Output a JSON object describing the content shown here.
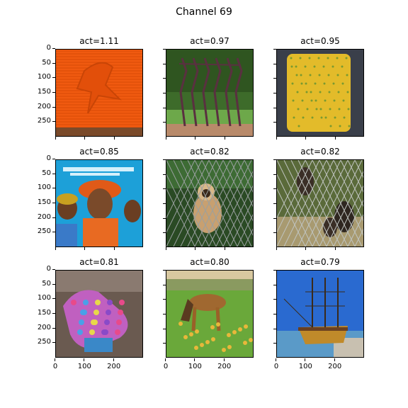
{
  "figure": {
    "title": "Channel 69"
  },
  "panels": [
    {
      "title": "act=1.11",
      "image": "orange knitted dishcloth with bird pattern"
    },
    {
      "title": "act=0.97",
      "image": "metal sculpture frames in garden"
    },
    {
      "title": "act=0.95",
      "image": "yellow knitted dishcloth"
    },
    {
      "title": "act=0.85",
      "image": "poster of women with headscarves"
    },
    {
      "title": "act=0.82",
      "image": "gibbon behind chain-link fence"
    },
    {
      "title": "act=0.82",
      "image": "animals behind chain-link fence"
    },
    {
      "title": "act=0.81",
      "image": "multicolored knitted mittens on wood"
    },
    {
      "title": "act=0.80",
      "image": "dog eating on grass"
    },
    {
      "title": "act=0.79",
      "image": "tall sailing ship at dock"
    }
  ],
  "axes": {
    "y_ticks": [
      "0",
      "50",
      "100",
      "150",
      "200",
      "250"
    ],
    "x_ticks": [
      "0",
      "100",
      "200"
    ]
  },
  "colors": {
    "frame": "#000000",
    "text": "#000000"
  }
}
